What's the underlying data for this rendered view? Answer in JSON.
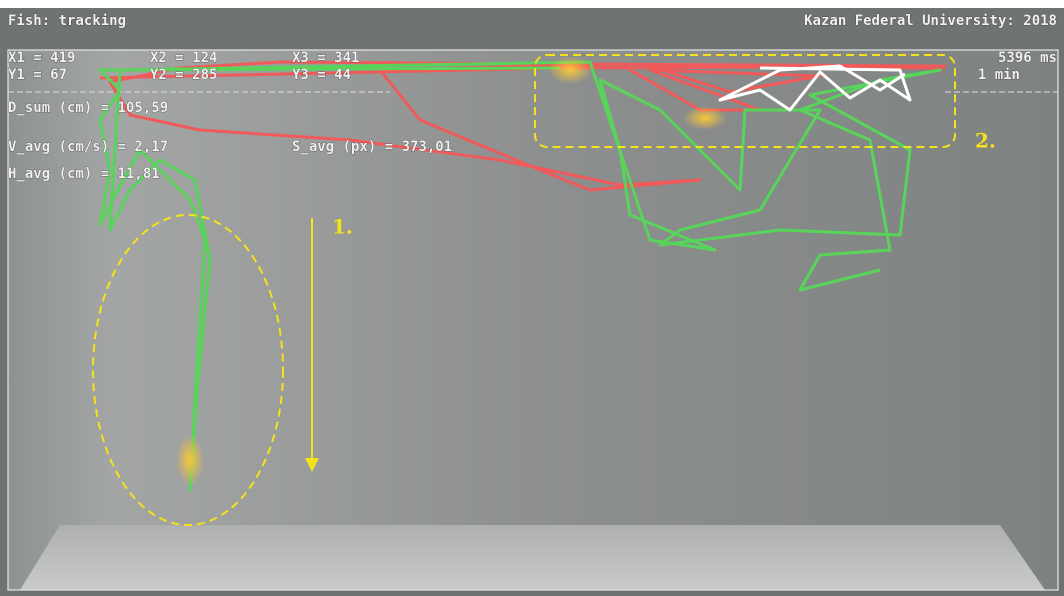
{
  "header": {
    "title": "Fish: tracking",
    "institution": "Kazan Federal University: 2018"
  },
  "coordinates": [
    "X1 = 419",
    "X2 = 124",
    "X3 = 341",
    "Y1 = 67",
    "Y2 = 285",
    "Y3 = 44"
  ],
  "time": {
    "elapsed": "5396 ms",
    "duration": "1 min"
  },
  "stats": {
    "distance": "D_sum (cm) = 105,59",
    "velocity": "V_avg (cm/s) = 2,17",
    "speed_px": "S_avg (px) = 373,01",
    "height": "H_avg (cm) = 11,81"
  },
  "annotations": {
    "descent": "1.",
    "surface": "2."
  }
}
